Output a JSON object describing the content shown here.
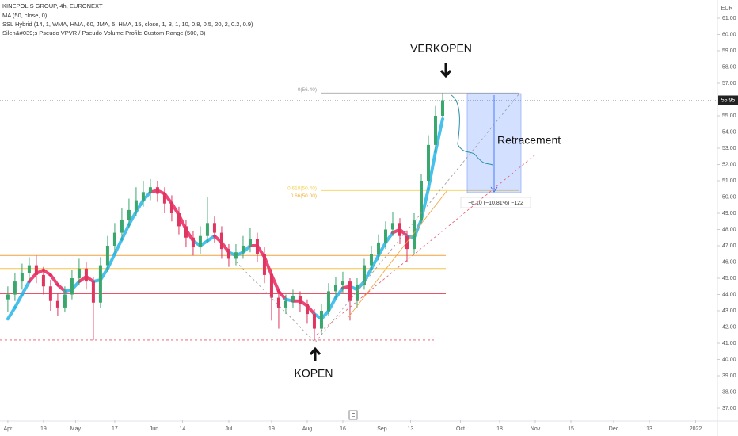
{
  "chart_data": {
    "type": "candlestick",
    "title": "KINEPOLIS GROUP, 4h, EURONEXT",
    "legend_lines": [
      "MA (50, close, 0)",
      "SSL Hybrid (14, 1, WMA, HMA, 60, JMA, 5, HMA, 15, close, 1, 3, 1, 10, 0.8, 0.5, 20, 2, 0.2, 0.9)",
      "Silen&#039;s Pseudo VPVR / Pseudo Volume Profile Custom Range (500, 3)"
    ],
    "currency": "EUR",
    "up_color": "#3aa76d",
    "down_color": "#e0355f",
    "xlim": [
      -2.2,
      199.1
    ],
    "ylim": [
      36.27,
      62.12
    ],
    "xticks": [
      {
        "value": 0,
        "label": "Apr"
      },
      {
        "value": 10,
        "label": "19"
      },
      {
        "value": 19,
        "label": "May"
      },
      {
        "value": 30,
        "label": "17"
      },
      {
        "value": 41,
        "label": "Jun"
      },
      {
        "value": 49,
        "label": "14"
      },
      {
        "value": 62,
        "label": "Jul"
      },
      {
        "value": 74,
        "label": "19"
      },
      {
        "value": 84,
        "label": "Aug"
      },
      {
        "value": 94,
        "label": "16"
      },
      {
        "value": 105,
        "label": "Sep"
      },
      {
        "value": 113,
        "label": "13"
      },
      {
        "value": 127,
        "label": "Oct"
      },
      {
        "value": 138,
        "label": "18"
      },
      {
        "value": 148,
        "label": "Nov"
      },
      {
        "value": 158,
        "label": "15"
      },
      {
        "value": 170,
        "label": "Dec"
      },
      {
        "value": 180,
        "label": "13"
      },
      {
        "value": 193,
        "label": "2022"
      }
    ],
    "yticks": [
      {
        "value": 37,
        "label": "37.00"
      },
      {
        "value": 38,
        "label": "38.00"
      },
      {
        "value": 39,
        "label": "39.00"
      },
      {
        "value": 40,
        "label": "40.00"
      },
      {
        "value": 41,
        "label": "41.00"
      },
      {
        "value": 42,
        "label": "42.00"
      },
      {
        "value": 43,
        "label": "43.00"
      },
      {
        "value": 44,
        "label": "44.00"
      },
      {
        "value": 45,
        "label": "45.00"
      },
      {
        "value": 46,
        "label": "46.00"
      },
      {
        "value": 47,
        "label": "47.00"
      },
      {
        "value": 48,
        "label": "48.00"
      },
      {
        "value": 49,
        "label": "49.00"
      },
      {
        "value": 50,
        "label": "50.00"
      },
      {
        "value": 51,
        "label": "51.00"
      },
      {
        "value": 52,
        "label": "52.00"
      },
      {
        "value": 53,
        "label": "53.00"
      },
      {
        "value": 54,
        "label": "54.00"
      },
      {
        "value": 55,
        "label": "55.00"
      },
      {
        "value": 57,
        "label": "57.00"
      },
      {
        "value": 58,
        "label": "58.00"
      },
      {
        "value": 59,
        "label": "59.00"
      },
      {
        "value": 60,
        "label": "60.00"
      },
      {
        "value": 61,
        "label": "61.00"
      }
    ],
    "last_price": 55.95,
    "x": [
      0,
      2,
      4,
      6,
      8,
      10,
      12,
      14,
      16,
      18,
      20,
      22,
      24,
      26,
      28,
      30,
      32,
      34,
      36,
      38,
      40,
      42,
      44,
      46,
      48,
      50,
      52,
      54,
      56,
      58,
      60,
      62,
      64,
      66,
      68,
      70,
      72,
      74,
      76,
      78,
      80,
      82,
      84,
      86,
      88,
      90,
      92,
      94,
      96,
      98,
      100,
      102,
      104,
      106,
      108,
      110,
      112,
      114,
      116,
      118,
      120,
      122
    ],
    "open": [
      43.7,
      44.0,
      44.8,
      45.3,
      45.8,
      45.2,
      44.5,
      43.6,
      43.2,
      44.0,
      45.0,
      45.6,
      44.8,
      43.5,
      45.8,
      47.0,
      47.8,
      48.6,
      49.2,
      49.8,
      50.3,
      50.6,
      50.2,
      49.6,
      49.0,
      48.2,
      47.5,
      46.9,
      47.6,
      48.4,
      47.8,
      46.8,
      46.2,
      46.6,
      47.0,
      47.4,
      46.5,
      45.2,
      43.8,
      43.2,
      43.6,
      43.9,
      43.4,
      42.8,
      41.9,
      43.0,
      44.2,
      44.6,
      44.8,
      43.6,
      44.6,
      45.8,
      46.5,
      47.2,
      48.0,
      48.4,
      47.6,
      46.8,
      48.6,
      51.0,
      53.2,
      55.0
    ],
    "high": [
      44.5,
      45.3,
      45.9,
      46.3,
      46.4,
      45.7,
      44.9,
      44.1,
      44.5,
      45.5,
      46.2,
      46.0,
      45.1,
      46.3,
      47.6,
      48.4,
      49.3,
      49.9,
      50.6,
      51.0,
      51.1,
      51.0,
      50.6,
      50.1,
      49.4,
      48.6,
      47.9,
      48.2,
      50.0,
      48.8,
      48.2,
      47.1,
      47.1,
      47.6,
      48.1,
      47.8,
      46.9,
      45.6,
      44.2,
      44.0,
      44.3,
      44.2,
      43.7,
      43.1,
      43.4,
      44.7,
      45.1,
      45.4,
      45.0,
      45.0,
      46.2,
      47.0,
      47.7,
      48.5,
      49.1,
      48.7,
      47.9,
      49.0,
      51.4,
      53.8,
      55.6,
      56.4
    ],
    "low": [
      42.9,
      43.6,
      44.3,
      44.9,
      44.7,
      44.0,
      43.0,
      42.7,
      42.9,
      43.7,
      44.6,
      44.3,
      41.2,
      43.2,
      45.4,
      46.6,
      47.3,
      48.1,
      48.8,
      49.4,
      49.8,
      49.7,
      49.0,
      48.5,
      47.7,
      46.9,
      46.4,
      46.5,
      47.2,
      47.2,
      46.2,
      45.7,
      45.8,
      46.2,
      46.6,
      46.0,
      44.7,
      42.4,
      41.9,
      42.8,
      43.2,
      42.9,
      42.2,
      41.2,
      41.5,
      42.7,
      43.8,
      44.1,
      42.4,
      43.2,
      44.3,
      45.3,
      46.1,
      46.8,
      47.6,
      47.1,
      46.0,
      46.5,
      48.3,
      50.7,
      52.8,
      54.9
    ],
    "close": [
      44.0,
      44.8,
      45.3,
      45.8,
      45.2,
      44.5,
      43.6,
      43.2,
      44.0,
      45.0,
      45.6,
      44.8,
      43.5,
      45.8,
      47.0,
      47.8,
      48.6,
      49.2,
      49.8,
      50.3,
      50.6,
      50.2,
      49.6,
      49.0,
      48.2,
      47.5,
      46.9,
      47.6,
      48.4,
      47.8,
      46.8,
      46.2,
      46.6,
      47.0,
      47.4,
      46.5,
      45.2,
      43.8,
      43.2,
      43.6,
      43.9,
      43.4,
      42.8,
      41.9,
      43.0,
      44.2,
      44.6,
      44.8,
      43.6,
      44.6,
      45.8,
      46.5,
      47.2,
      48.0,
      48.4,
      47.6,
      46.8,
      48.6,
      51.0,
      53.2,
      55.0,
      55.95
    ],
    "ssl": {
      "up_color": "#27b5e8",
      "down_color": "#e8265f",
      "values": [
        42.5,
        43.2,
        44.0,
        44.8,
        45.3,
        45.5,
        45.2,
        44.6,
        44.2,
        44.3,
        44.8,
        45.1,
        44.8,
        44.9,
        45.6,
        46.5,
        47.4,
        48.3,
        49.1,
        49.8,
        50.3,
        50.4,
        50.2,
        49.6,
        48.9,
        48.0,
        47.3,
        47.0,
        47.3,
        47.6,
        47.2,
        46.6,
        46.4,
        46.6,
        47.0,
        47.0,
        46.3,
        45.2,
        44.2,
        43.7,
        43.6,
        43.6,
        43.3,
        42.8,
        42.5,
        43.0,
        43.8,
        44.4,
        44.5,
        44.3,
        44.8,
        45.6,
        46.4,
        47.2,
        47.8,
        48.0,
        47.6,
        47.5,
        48.6,
        50.5,
        52.8,
        54.8
      ]
    },
    "levels": [
      {
        "value": 46.4,
        "color": "#f3a23a"
      },
      {
        "value": 45.6,
        "color": "#f6c34a"
      },
      {
        "value": 44.05,
        "color": "#e8556a"
      }
    ],
    "support": {
      "value": 41.2,
      "color": "#e8556a"
    },
    "fib": [
      {
        "value": 56.4,
        "label": "0(56.40)",
        "color": "#999"
      },
      {
        "value": 50.4,
        "label": "0.618(50.40)",
        "color": "#f5d25a"
      },
      {
        "value": 50.0,
        "label": "0.66(50.00)",
        "color": "#f2b23a"
      }
    ],
    "annotations": {
      "sell": "VERKOPEN",
      "buy": "KOPEN",
      "retracement": "Retracement",
      "measure": "−6.10 (−10.81%) −122"
    },
    "footer_icon": "E"
  }
}
